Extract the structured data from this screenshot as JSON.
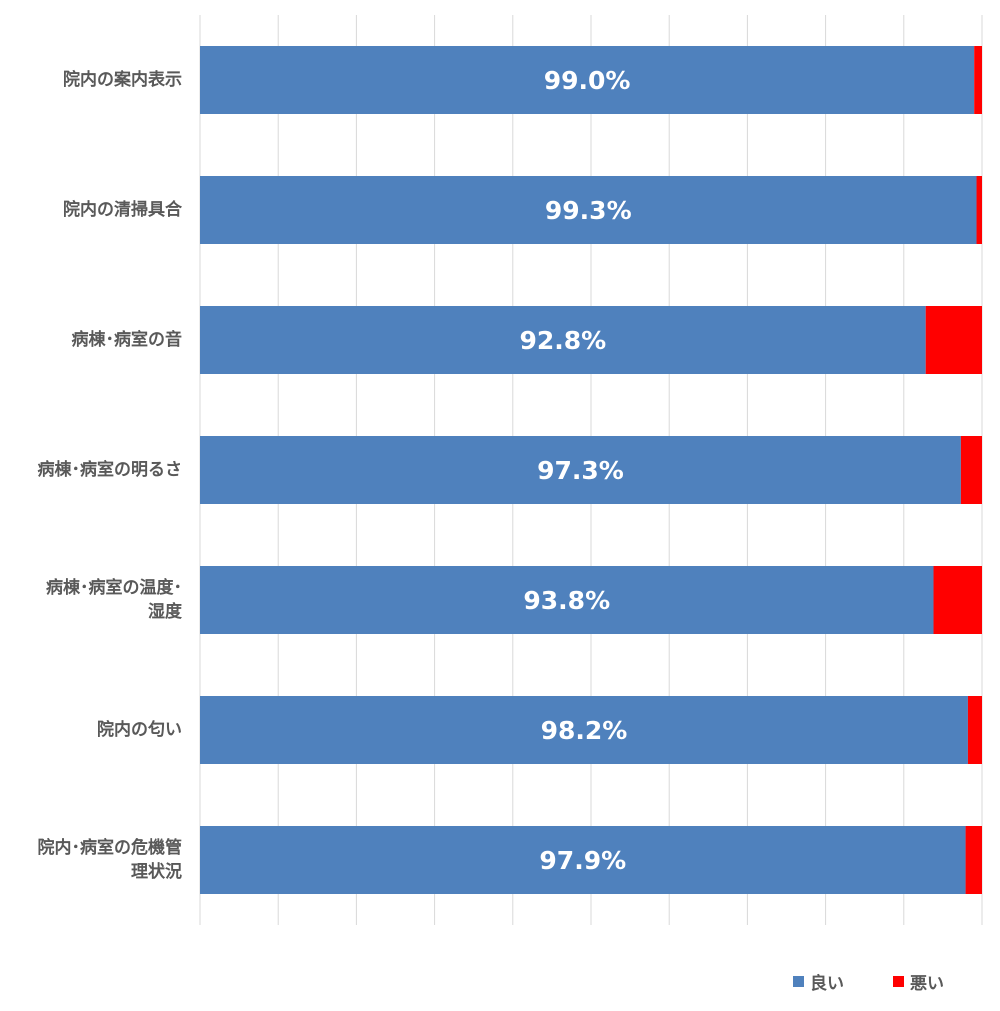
{
  "chart_data": {
    "type": "bar",
    "orientation": "horizontal",
    "stacked": "percent",
    "categories": [
      "院内の案内表示",
      "院内の清掃具合",
      "病棟･病室の音",
      "病棟･病室の明るさ",
      "病棟･病室の温度･湿度",
      "院内の匂い",
      "院内･病室の危機管理状況"
    ],
    "category_display_lines": [
      [
        "院内の案内表示"
      ],
      [
        "院内の清掃具合"
      ],
      [
        "病棟･病室の音"
      ],
      [
        "病棟･病室の明るさ"
      ],
      [
        "病棟･病室の温度･",
        "湿度"
      ],
      [
        "院内の匂い"
      ],
      [
        "院内･病室の危機管",
        "理状況"
      ]
    ],
    "series": [
      {
        "name": "良い",
        "color": "#4F81BD",
        "values": [
          99.0,
          99.3,
          92.8,
          97.3,
          93.8,
          98.2,
          97.9
        ]
      },
      {
        "name": "悪い",
        "color": "#FF0000",
        "values": [
          1.0,
          0.7,
          7.2,
          2.7,
          6.2,
          1.8,
          2.1
        ]
      }
    ],
    "data_labels": [
      "99.0%",
      "99.3%",
      "92.8%",
      "97.3%",
      "93.8%",
      "98.2%",
      "97.9%"
    ],
    "xlim": [
      0,
      100
    ],
    "grid": true,
    "legend_position": "bottom-right"
  }
}
